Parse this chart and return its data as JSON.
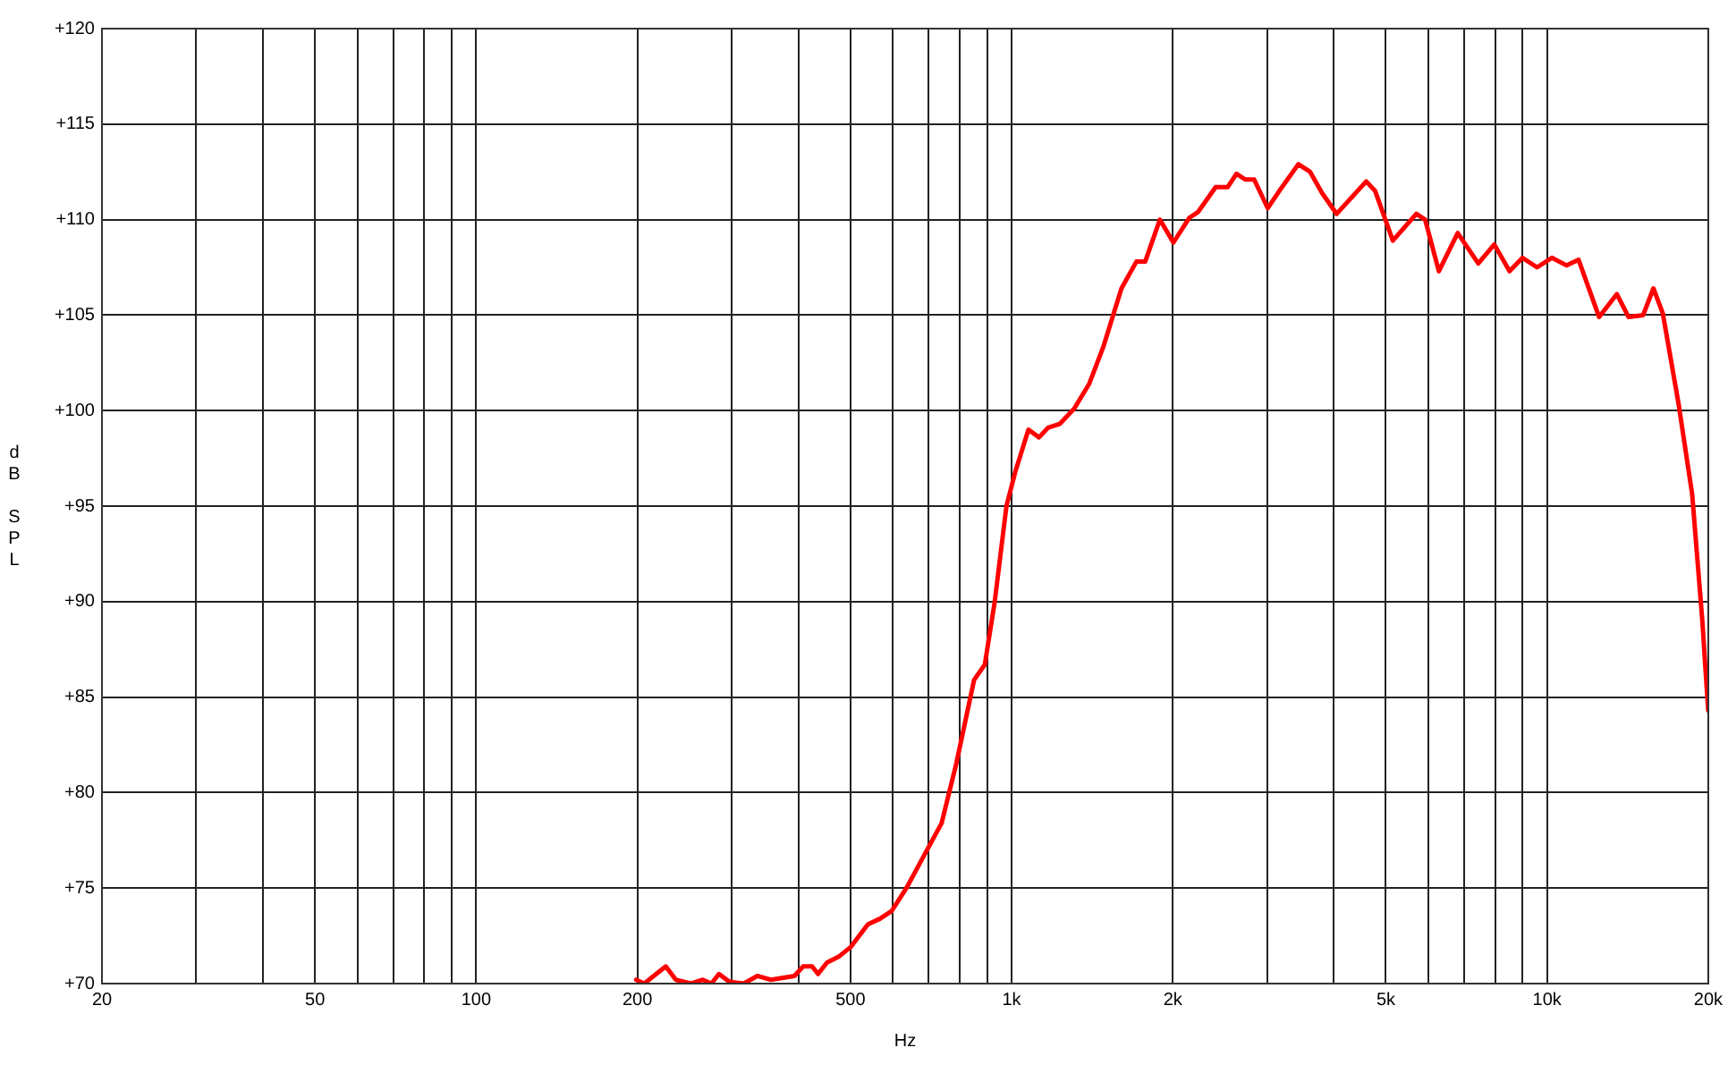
{
  "chart_data": {
    "type": "line",
    "xlabel": "Hz",
    "ylabel": "dB SPL",
    "log": "x",
    "grid": true,
    "marker": "none",
    "line_style": "solid",
    "xlim": [
      20,
      20000
    ],
    "ylim": [
      70,
      120
    ],
    "xticks": [
      20,
      {
        "value": 30,
        "label": null
      },
      {
        "value": 40,
        "label": null
      },
      50,
      {
        "value": 60,
        "label": null
      },
      {
        "value": 70,
        "label": null
      },
      {
        "value": 80,
        "label": null
      },
      {
        "value": 90,
        "label": null
      },
      100,
      200,
      {
        "value": 300,
        "label": null
      },
      {
        "value": 400,
        "label": null
      },
      500,
      {
        "value": 600,
        "label": null
      },
      {
        "value": 700,
        "label": null
      },
      {
        "value": 800,
        "label": null
      },
      {
        "value": 900,
        "label": null
      },
      {
        "value": 1000,
        "label": "1k"
      },
      {
        "value": 2000,
        "label": "2k"
      },
      {
        "value": 3000,
        "label": null
      },
      {
        "value": 4000,
        "label": null
      },
      {
        "value": 5000,
        "label": "5k"
      },
      {
        "value": 6000,
        "label": null
      },
      {
        "value": 7000,
        "label": null
      },
      {
        "value": 8000,
        "label": null
      },
      {
        "value": 9000,
        "label": null
      },
      {
        "value": 10000,
        "label": "10k"
      },
      {
        "value": 20000,
        "label": "20k"
      }
    ],
    "yticks": [
      {
        "value": 70,
        "label": "+70"
      },
      {
        "value": 75,
        "label": "+75"
      },
      {
        "value": 80,
        "label": "+80"
      },
      {
        "value": 85,
        "label": "+85"
      },
      {
        "value": 90,
        "label": "+90"
      },
      {
        "value": 95,
        "label": "+95"
      },
      {
        "value": 100,
        "label": "+100"
      },
      {
        "value": 105,
        "label": "+105"
      },
      {
        "value": 110,
        "label": "+110"
      },
      {
        "value": 115,
        "label": "+115"
      },
      {
        "value": 120,
        "label": "+120"
      }
    ],
    "x": [
      199,
      206,
      219,
      226,
      236,
      252,
      265,
      275,
      284,
      297,
      316,
      335,
      355,
      393,
      408,
      424,
      435,
      452,
      475,
      500,
      539,
      568,
      597,
      636,
      686,
      740,
      788,
      851,
      891,
      930,
      978,
      1016,
      1075,
      1125,
      1169,
      1229,
      1309,
      1396,
      1486,
      1604,
      1710,
      1776,
      1892,
      2005,
      2148,
      2230,
      2405,
      2532,
      2630,
      2731,
      2838,
      3008,
      3180,
      3432,
      3610,
      3799,
      4047,
      4595,
      4775,
      5152,
      5700,
      5920,
      6280,
      6810,
      7440,
      7970,
      8510,
      9000,
      9580,
      10210,
      10880,
      11450,
      12510,
      13500,
      14200,
      15120,
      15800,
      16450,
      17620,
      18670,
      19500,
      20000
    ],
    "series": [
      {
        "color": "#ff0000",
        "values": [
          70.2,
          70.0,
          70.6,
          70.9,
          70.2,
          70.0,
          70.2,
          70.0,
          70.5,
          70.1,
          70.0,
          70.4,
          70.2,
          70.4,
          70.9,
          70.9,
          70.5,
          71.1,
          71.4,
          71.9,
          73.1,
          73.4,
          73.8,
          75.0,
          76.7,
          78.4,
          81.5,
          85.9,
          86.7,
          90.0,
          95.0,
          96.8,
          99.0,
          98.6,
          99.1,
          99.3,
          100.1,
          101.4,
          103.4,
          106.4,
          107.8,
          107.8,
          110.0,
          108.8,
          110.1,
          110.4,
          111.7,
          111.7,
          112.4,
          112.1,
          112.1,
          110.6,
          111.6,
          112.9,
          112.5,
          111.4,
          110.3,
          112.0,
          111.5,
          108.9,
          110.3,
          110.0,
          107.3,
          109.3,
          107.7,
          108.7,
          107.3,
          108.0,
          107.5,
          108.0,
          107.6,
          107.9,
          104.9,
          106.1,
          104.9,
          105.0,
          106.4,
          105.1,
          100.3,
          95.6,
          89.0,
          84.3
        ]
      }
    ]
  }
}
